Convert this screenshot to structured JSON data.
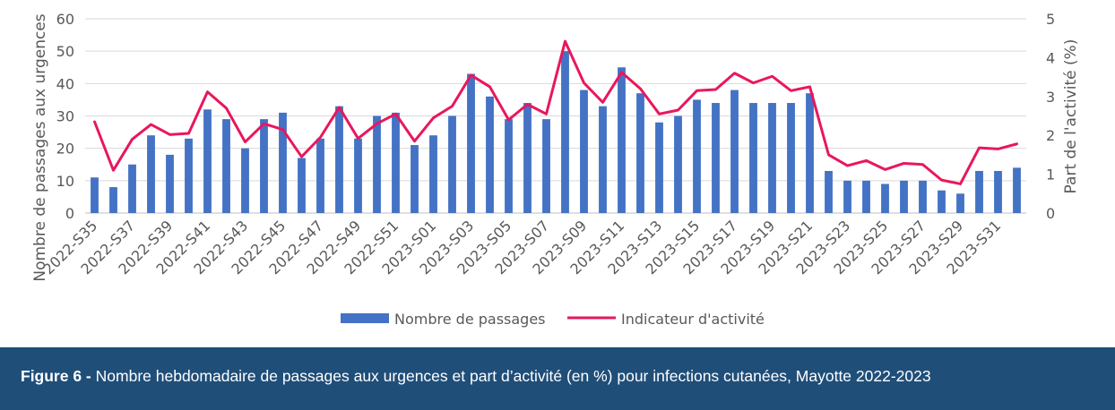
{
  "figure": {
    "label": "Figure 6 -",
    "caption": "Nombre hebdomadaire de passages aux urgences et part d’activité (en %) pour infections cutanées, Mayotte 2022-2023"
  },
  "chart_data": {
    "type": "bar",
    "title": "",
    "categories": [
      "2022-S35",
      "2022-S36",
      "2022-S37",
      "2022-S38",
      "2022-S39",
      "2022-S40",
      "2022-S41",
      "2022-S42",
      "2022-S43",
      "2022-S44",
      "2022-S45",
      "2022-S46",
      "2022-S47",
      "2022-S48",
      "2022-S49",
      "2022-S50",
      "2022-S51",
      "2022-S52",
      "2023-S01",
      "2023-S02",
      "2023-S03",
      "2023-S04",
      "2023-S05",
      "2023-S06",
      "2023-S07",
      "2023-S08",
      "2023-S09",
      "2023-S10",
      "2023-S11",
      "2023-S12",
      "2023-S13",
      "2023-S14",
      "2023-S15",
      "2023-S16",
      "2023-S17",
      "2023-S18",
      "2023-S19",
      "2023-S20",
      "2023-S21",
      "2023-S22",
      "2023-S23",
      "2023-S24",
      "2023-S25",
      "2023-S26",
      "2023-S27",
      "2023-S28",
      "2023-S29",
      "2023-S30",
      "2023-S31",
      "2023-S32"
    ],
    "tick_labels": [
      "2022-S35",
      "2022-S37",
      "2022-S39",
      "2022-S41",
      "2022-S43",
      "2022-S45",
      "2022-S47",
      "2022-S49",
      "2022-S51",
      "2023-S01",
      "2023-S03",
      "2023-S05",
      "2023-S07",
      "2023-S09",
      "2023-S11",
      "2023-S13",
      "2023-S15",
      "2023-S17",
      "2023-S19",
      "2023-S21",
      "2023-S23",
      "2023-S25",
      "2023-S27",
      "2023-S29",
      "2023-S31"
    ],
    "ylabel": "Nombre de passages aux urgences",
    "y2label": "Part de l'activité (%)",
    "ylim": [
      0,
      60
    ],
    "y2lim": [
      0,
      5
    ],
    "yticks": [
      0,
      10,
      20,
      30,
      40,
      50,
      60
    ],
    "y2ticks": [
      0,
      1,
      2,
      3,
      4,
      5
    ],
    "grid": true,
    "legend": "bottom-center",
    "series": [
      {
        "name": "Nombre de passages",
        "type": "bar",
        "axis": "left",
        "color": "#4472c4",
        "values": [
          11,
          8,
          15,
          24,
          18,
          23,
          32,
          29,
          20,
          29,
          31,
          17,
          23,
          33,
          23,
          30,
          31,
          21,
          24,
          30,
          43,
          36,
          29,
          34,
          29,
          50,
          38,
          33,
          45,
          37,
          28,
          30,
          35,
          34,
          38,
          34,
          34,
          34,
          37,
          13,
          10,
          10,
          9,
          10,
          10,
          7,
          6,
          13,
          13,
          14
        ]
      },
      {
        "name": "Indicateur d'activité",
        "type": "line",
        "axis": "right",
        "color": "#e8175d",
        "values": [
          2.35,
          1.1,
          1.9,
          2.28,
          2.02,
          2.05,
          3.12,
          2.7,
          1.83,
          2.3,
          2.15,
          1.45,
          1.95,
          2.72,
          1.92,
          2.3,
          2.55,
          1.85,
          2.45,
          2.75,
          3.55,
          3.25,
          2.4,
          2.8,
          2.55,
          4.42,
          3.35,
          2.85,
          3.62,
          3.2,
          2.55,
          2.65,
          3.15,
          3.18,
          3.6,
          3.35,
          3.52,
          3.15,
          3.25,
          1.5,
          1.22,
          1.35,
          1.12,
          1.28,
          1.25,
          0.85,
          0.75,
          1.68,
          1.65,
          1.78
        ]
      }
    ]
  }
}
